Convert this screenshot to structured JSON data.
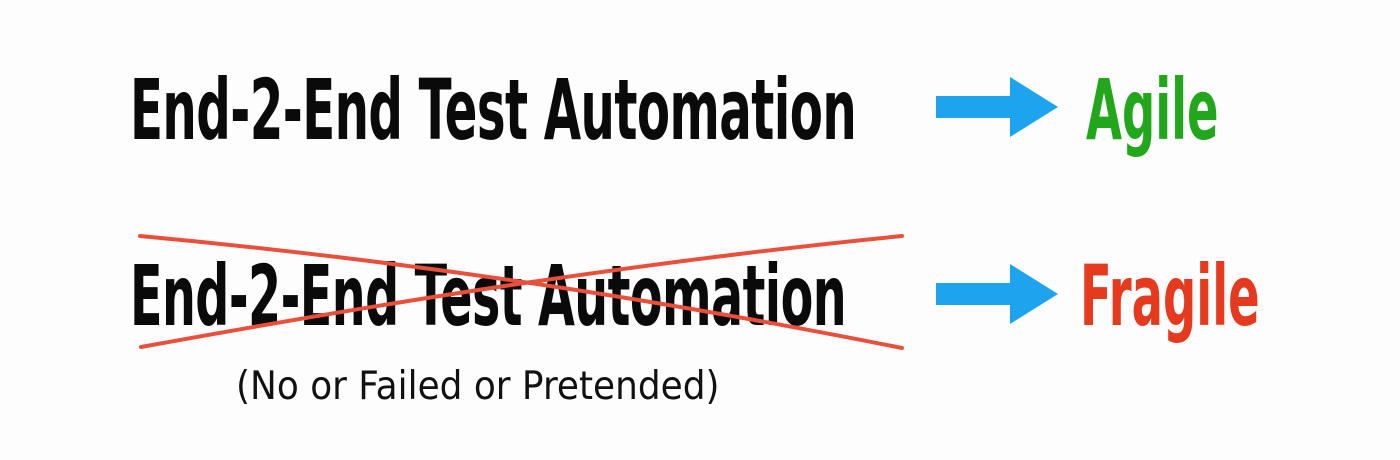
{
  "rows": [
    {
      "lhs": "End-2-End Test Automation",
      "rhs": "Agile",
      "rhs_color": "#22a71c"
    },
    {
      "lhs": "End-2-End Test Automation",
      "rhs": "Fragile",
      "rhs_color": "#e63a1f",
      "crossed_out": true,
      "note": "(No or Failed or Pretended)"
    }
  ],
  "colors": {
    "text": "#0a0a0a",
    "arrow": "#1ea3ef",
    "strike": "#e8503c"
  },
  "icons": {
    "arrow": "right-arrow-icon",
    "strike": "cross-out-mark"
  }
}
